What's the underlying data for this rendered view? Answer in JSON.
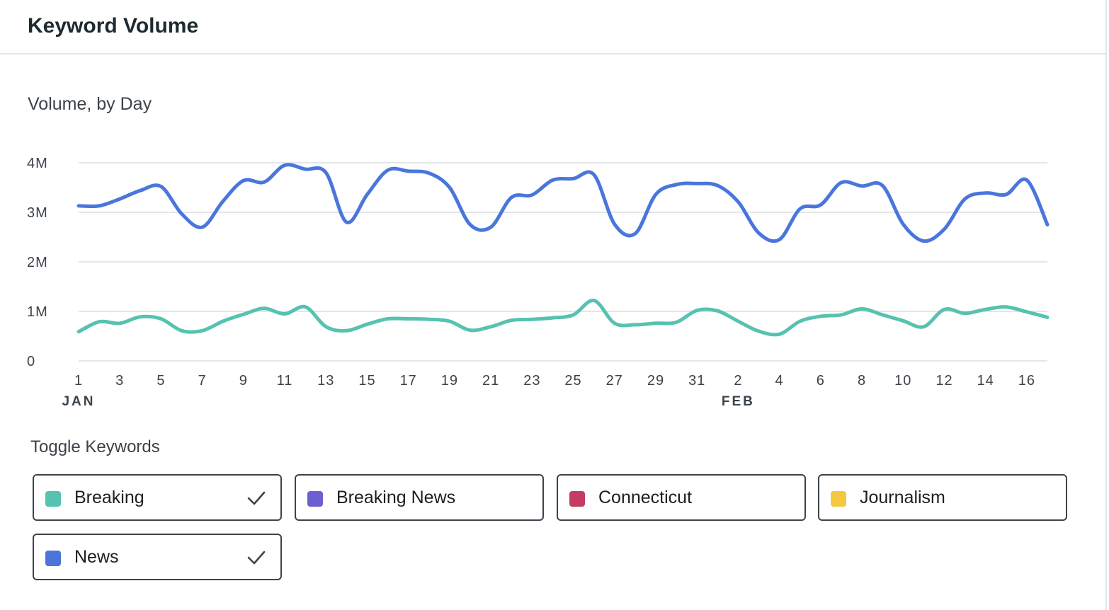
{
  "panel": {
    "title": "Keyword Volume"
  },
  "toggles_title": "Toggle Keywords",
  "keywords": [
    {
      "name": "Breaking",
      "color": "#56c2b0",
      "checked": true
    },
    {
      "name": "Breaking News",
      "color": "#6c5fcf",
      "checked": false
    },
    {
      "name": "Connecticut",
      "color": "#c23c63",
      "checked": false
    },
    {
      "name": "Journalism",
      "color": "#f5c842",
      "checked": false
    },
    {
      "name": "News",
      "color": "#4a76dc",
      "checked": true
    }
  ],
  "chart_data": {
    "type": "line",
    "title": "Volume, by Day",
    "xlabel": "",
    "ylabel": "",
    "ylim": [
      0,
      4000000
    ],
    "yticks": [
      0,
      1000000,
      2000000,
      3000000,
      4000000
    ],
    "ytick_labels": [
      "0",
      "1M",
      "2M",
      "3M",
      "4M"
    ],
    "x": [
      "2024-01-01",
      "2024-01-02",
      "2024-01-03",
      "2024-01-04",
      "2024-01-05",
      "2024-01-06",
      "2024-01-07",
      "2024-01-08",
      "2024-01-09",
      "2024-01-10",
      "2024-01-11",
      "2024-01-12",
      "2024-01-13",
      "2024-01-14",
      "2024-01-15",
      "2024-01-16",
      "2024-01-17",
      "2024-01-18",
      "2024-01-19",
      "2024-01-20",
      "2024-01-21",
      "2024-01-22",
      "2024-01-23",
      "2024-01-24",
      "2024-01-25",
      "2024-01-26",
      "2024-01-27",
      "2024-01-28",
      "2024-01-29",
      "2024-01-30",
      "2024-01-31",
      "2024-02-01",
      "2024-02-02",
      "2024-02-03",
      "2024-02-04",
      "2024-02-05",
      "2024-02-06",
      "2024-02-07",
      "2024-02-08",
      "2024-02-09",
      "2024-02-10",
      "2024-02-11",
      "2024-02-12",
      "2024-02-13",
      "2024-02-14",
      "2024-02-15",
      "2024-02-16",
      "2024-02-17"
    ],
    "xtick_labels": [
      "1",
      "3",
      "5",
      "7",
      "9",
      "11",
      "13",
      "15",
      "17",
      "19",
      "21",
      "23",
      "25",
      "27",
      "29",
      "31",
      "2",
      "4",
      "6",
      "8",
      "10",
      "12",
      "14",
      "16"
    ],
    "month_labels": [
      {
        "label": "JAN",
        "at": "2024-01-01"
      },
      {
        "label": "FEB",
        "at": "2024-02-02"
      }
    ],
    "series": [
      {
        "name": "News",
        "color": "#4a76dc",
        "values": [
          3130000,
          3130000,
          3270000,
          3440000,
          3520000,
          2970000,
          2700000,
          3220000,
          3640000,
          3610000,
          3950000,
          3870000,
          3800000,
          2800000,
          3360000,
          3850000,
          3830000,
          3790000,
          3500000,
          2750000,
          2700000,
          3300000,
          3350000,
          3650000,
          3680000,
          3760000,
          2760000,
          2570000,
          3360000,
          3560000,
          3580000,
          3540000,
          3210000,
          2580000,
          2450000,
          3070000,
          3150000,
          3600000,
          3530000,
          3540000,
          2760000,
          2420000,
          2660000,
          3270000,
          3390000,
          3360000,
          3650000,
          2750000
        ]
      },
      {
        "name": "Breaking",
        "color": "#56c2b0",
        "values": [
          590000,
          790000,
          760000,
          890000,
          850000,
          610000,
          610000,
          800000,
          940000,
          1060000,
          950000,
          1090000,
          690000,
          610000,
          740000,
          850000,
          850000,
          840000,
          800000,
          620000,
          690000,
          820000,
          840000,
          870000,
          930000,
          1220000,
          760000,
          730000,
          760000,
          780000,
          1020000,
          1010000,
          800000,
          600000,
          540000,
          800000,
          900000,
          930000,
          1050000,
          930000,
          810000,
          690000,
          1040000,
          960000,
          1040000,
          1090000,
          990000,
          880000
        ]
      }
    ],
    "grid": true,
    "legend": "bottom"
  }
}
